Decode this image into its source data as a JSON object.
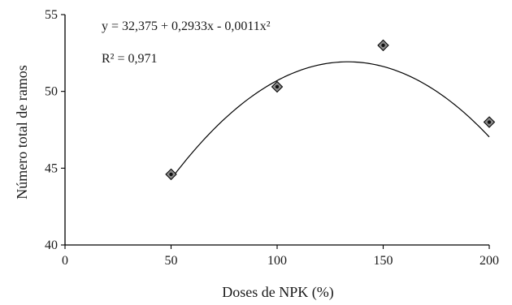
{
  "chart_data": {
    "type": "scatter",
    "xlabel": "Doses de NPK (%)",
    "ylabel": "Número total de ramos",
    "xlim": [
      0,
      200
    ],
    "ylim": [
      40,
      55
    ],
    "x_ticks": [
      "0",
      "50",
      "100",
      "150",
      "200"
    ],
    "y_ticks": [
      "40",
      "45",
      "50",
      "55"
    ],
    "grid": false,
    "marker": "diamond",
    "series": [
      {
        "x": [
          50,
          100,
          150,
          200
        ],
        "y": [
          44.6,
          50.3,
          53.0,
          48.0
        ]
      }
    ],
    "trendline": {
      "kind": "polynomial",
      "coefficients": [
        32.375,
        0.2933,
        -0.0011
      ],
      "x_range": [
        50,
        200
      ]
    },
    "annotations": {
      "equation": "y = 32,375 + 0,2933x - 0,0011x²",
      "r_squared": "R² = 0,971"
    },
    "colors": {
      "axis": "#000000",
      "marker_fill": "#8a8a8a",
      "marker_center": "#111111",
      "curve": "#000000"
    }
  }
}
